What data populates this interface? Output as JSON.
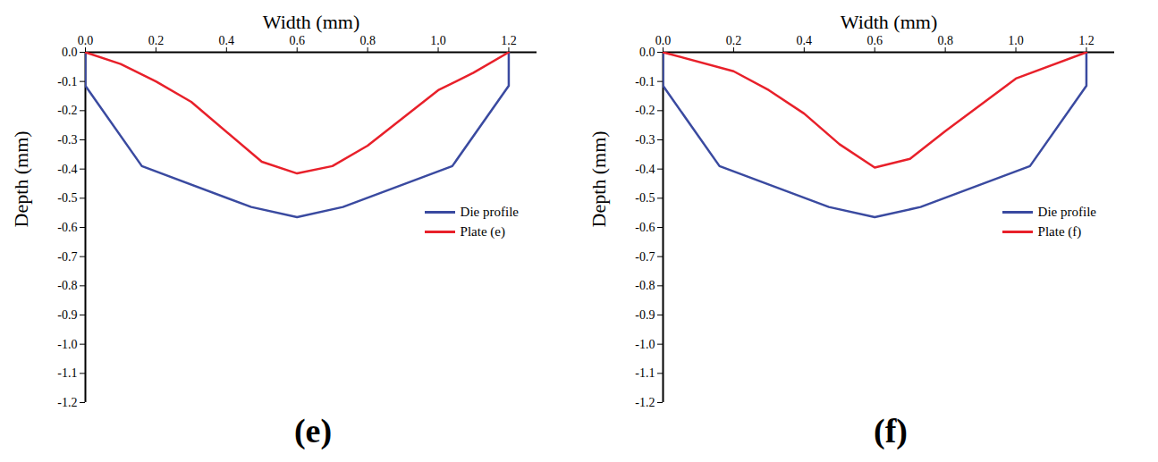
{
  "chart_data": [
    {
      "type": "line",
      "title": "(e)",
      "x_label": "Width (mm)",
      "y_label": "Depth (mm)",
      "xlim": [
        0,
        1.28
      ],
      "ylim": [
        -1.2,
        0
      ],
      "xticks": [
        {
          "value": 0,
          "label": "0.0"
        },
        {
          "value": 0.2,
          "label": "0.2"
        },
        {
          "value": 0.4,
          "label": "0.4"
        },
        {
          "value": 0.6,
          "label": "0.6"
        },
        {
          "value": 0.8,
          "label": "0.8"
        },
        {
          "value": 1.0,
          "label": "1.0"
        },
        {
          "value": 1.2,
          "label": "1.2"
        }
      ],
      "yticks": [
        {
          "value": 0,
          "label": "0.0"
        },
        {
          "value": -0.1,
          "label": "-0.1"
        },
        {
          "value": -0.2,
          "label": "-0.2"
        },
        {
          "value": -0.3,
          "label": "-0.3"
        },
        {
          "value": -0.4,
          "label": "-0.4"
        },
        {
          "value": -0.5,
          "label": "-0.5"
        },
        {
          "value": -0.6,
          "label": "-0.6"
        },
        {
          "value": -0.7,
          "label": "-0.7"
        },
        {
          "value": -0.8,
          "label": "-0.8"
        },
        {
          "value": -0.9,
          "label": "-0.9"
        },
        {
          "value": -1.0,
          "label": "-1.0"
        },
        {
          "value": -1.1,
          "label": "-1.1"
        },
        {
          "value": -1.2,
          "label": "-1.2"
        }
      ],
      "legend": "lower right",
      "series": [
        {
          "name": "Die profile",
          "color": "#3a4aa0",
          "x": [
            0,
            0,
            0.16,
            0.47,
            0.6,
            0.73,
            1.04,
            1.2,
            1.2
          ],
          "values": [
            0,
            -0.115,
            -0.39,
            -0.53,
            -0.565,
            -0.53,
            -0.39,
            -0.115,
            0
          ]
        },
        {
          "name": "Plate (e)",
          "color": "#e8202a",
          "x": [
            0,
            0.1,
            0.2,
            0.3,
            0.5,
            0.6,
            0.7,
            0.8,
            1.0,
            1.1,
            1.2
          ],
          "values": [
            0,
            -0.04,
            -0.1,
            -0.17,
            -0.375,
            -0.415,
            -0.39,
            -0.32,
            -0.13,
            -0.07,
            0
          ]
        }
      ]
    },
    {
      "type": "line",
      "title": "(f)",
      "x_label": "Width (mm)",
      "y_label": "Depth (mm)",
      "xlim": [
        0,
        1.28
      ],
      "ylim": [
        -1.2,
        0
      ],
      "xticks": [
        {
          "value": 0,
          "label": "0.0"
        },
        {
          "value": 0.2,
          "label": "0.2"
        },
        {
          "value": 0.4,
          "label": "0.4"
        },
        {
          "value": 0.6,
          "label": "0.6"
        },
        {
          "value": 0.8,
          "label": "0.8"
        },
        {
          "value": 1.0,
          "label": "1.0"
        },
        {
          "value": 1.2,
          "label": "1.2"
        }
      ],
      "yticks": [
        {
          "value": 0,
          "label": "0.0"
        },
        {
          "value": -0.1,
          "label": "-0.1"
        },
        {
          "value": -0.2,
          "label": "-0.2"
        },
        {
          "value": -0.3,
          "label": "-0.3"
        },
        {
          "value": -0.4,
          "label": "-0.4"
        },
        {
          "value": -0.5,
          "label": "-0.5"
        },
        {
          "value": -0.6,
          "label": "-0.6"
        },
        {
          "value": -0.7,
          "label": "-0.7"
        },
        {
          "value": -0.8,
          "label": "-0.8"
        },
        {
          "value": -0.9,
          "label": "-0.9"
        },
        {
          "value": -1.0,
          "label": "-1.0"
        },
        {
          "value": -1.1,
          "label": "-1.1"
        },
        {
          "value": -1.2,
          "label": "-1.2"
        }
      ],
      "legend": "lower right",
      "series": [
        {
          "name": "Die profile",
          "color": "#3a4aa0",
          "x": [
            0,
            0,
            0.16,
            0.47,
            0.6,
            0.73,
            1.04,
            1.2,
            1.2
          ],
          "values": [
            0,
            -0.115,
            -0.39,
            -0.53,
            -0.565,
            -0.53,
            -0.39,
            -0.115,
            0
          ]
        },
        {
          "name": "Plate (f)",
          "color": "#e8202a",
          "x": [
            0,
            0.2,
            0.3,
            0.4,
            0.5,
            0.6,
            0.7,
            0.8,
            1.0,
            1.2
          ],
          "values": [
            0,
            -0.065,
            -0.13,
            -0.21,
            -0.315,
            -0.395,
            -0.365,
            -0.27,
            -0.09,
            0
          ]
        }
      ]
    }
  ]
}
